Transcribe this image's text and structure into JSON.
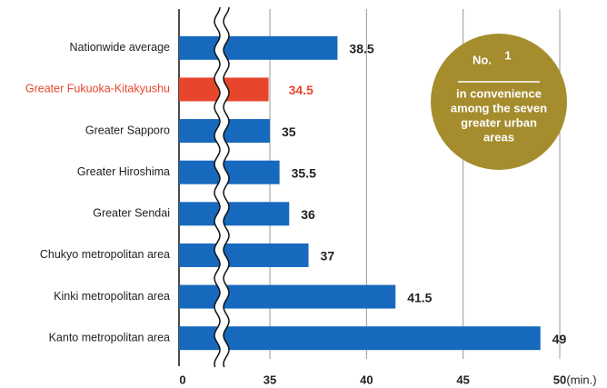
{
  "chart_data": {
    "type": "bar",
    "orientation": "horizontal",
    "categories": [
      "Nationwide average",
      "Greater Fukuoka-Kitakyushu",
      "Greater Sapporo",
      "Greater Hiroshima",
      "Greater Sendai",
      "Chukyo metropolitan area",
      "Kinki metropolitan area",
      "Kanto metropolitan area"
    ],
    "values": [
      38.5,
      34.5,
      35,
      35.5,
      36,
      37,
      41.5,
      49
    ],
    "colors": [
      "#1769bd",
      "#e8462c",
      "#1769bd",
      "#1769bd",
      "#1769bd",
      "#1769bd",
      "#1769bd",
      "#1769bd"
    ],
    "xlim": [
      0,
      50
    ],
    "xticks": [
      0,
      35,
      40,
      45,
      50
    ],
    "x_unit": "(min.)",
    "axis_break": true,
    "grid": true,
    "badge": {
      "title": "No.",
      "rank": "1",
      "text": [
        "in convenience",
        "among the seven",
        "greater urban",
        "areas"
      ],
      "color": "#a58c2d"
    }
  }
}
